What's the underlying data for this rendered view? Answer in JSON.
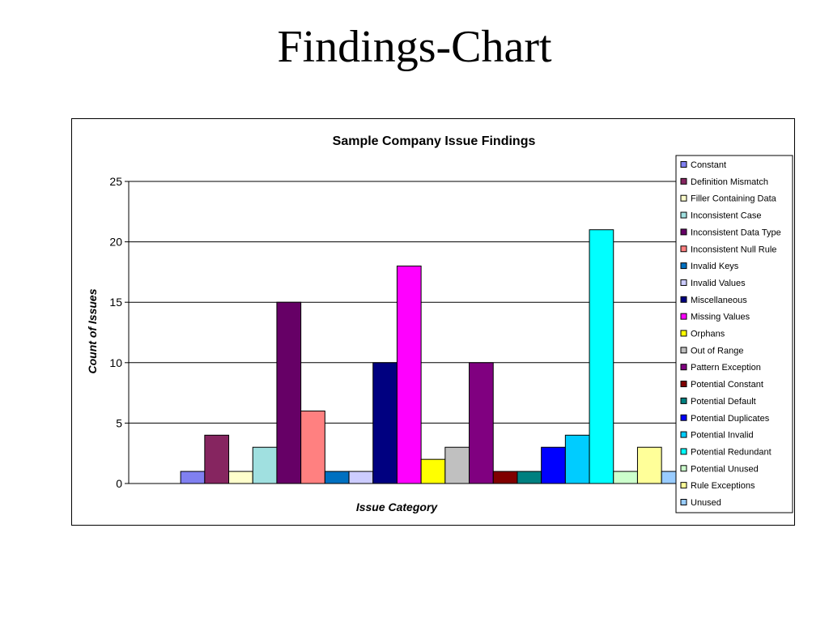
{
  "slide": {
    "title": "Findings-Chart"
  },
  "chart_data": {
    "type": "bar",
    "title": "Sample Company Issue Findings",
    "xlabel": "Issue Category",
    "ylabel": "Count of Issues",
    "ylim": [
      0,
      25
    ],
    "yticks": [
      0,
      5,
      10,
      15,
      20,
      25
    ],
    "grid": true,
    "legend_position": "right",
    "categories": [
      "Issue Category"
    ],
    "series": [
      {
        "name": "Constant",
        "values": [
          1
        ],
        "color": "#8080F0"
      },
      {
        "name": "Definition Mismatch",
        "values": [
          4
        ],
        "color": "#862560"
      },
      {
        "name": "Filler Containing Data",
        "values": [
          1
        ],
        "color": "#FFFFCC"
      },
      {
        "name": "Inconsistent Case",
        "values": [
          3
        ],
        "color": "#A0E0E0"
      },
      {
        "name": "Inconsistent Data Type",
        "values": [
          15
        ],
        "color": "#660066"
      },
      {
        "name": "Inconsistent Null Rule",
        "values": [
          6
        ],
        "color": "#FF8080"
      },
      {
        "name": "Invalid Keys",
        "values": [
          1
        ],
        "color": "#0070C0"
      },
      {
        "name": "Invalid Values",
        "values": [
          1
        ],
        "color": "#CCCCFF"
      },
      {
        "name": "Miscellaneous",
        "values": [
          10
        ],
        "color": "#000080"
      },
      {
        "name": "Missing Values",
        "values": [
          18
        ],
        "color": "#FF00FF"
      },
      {
        "name": "Orphans",
        "values": [
          2
        ],
        "color": "#FFFF00"
      },
      {
        "name": "Out of Range",
        "values": [
          3
        ],
        "color": "#C0C0C0"
      },
      {
        "name": "Pattern Exception",
        "values": [
          10
        ],
        "color": "#800080"
      },
      {
        "name": "Potential Constant",
        "values": [
          1
        ],
        "color": "#800000"
      },
      {
        "name": "Potential Default",
        "values": [
          1
        ],
        "color": "#008080"
      },
      {
        "name": "Potential Duplicates",
        "values": [
          3
        ],
        "color": "#0000FF"
      },
      {
        "name": "Potential Invalid",
        "values": [
          4
        ],
        "color": "#00CCFF"
      },
      {
        "name": "Potential Redundant",
        "values": [
          21
        ],
        "color": "#00FFFF"
      },
      {
        "name": "Potential Unused",
        "values": [
          1
        ],
        "color": "#CCFFCC"
      },
      {
        "name": "Rule Exceptions",
        "values": [
          3
        ],
        "color": "#FFFF99"
      },
      {
        "name": "Unused",
        "values": [
          1
        ],
        "color": "#99CCFF"
      }
    ]
  }
}
